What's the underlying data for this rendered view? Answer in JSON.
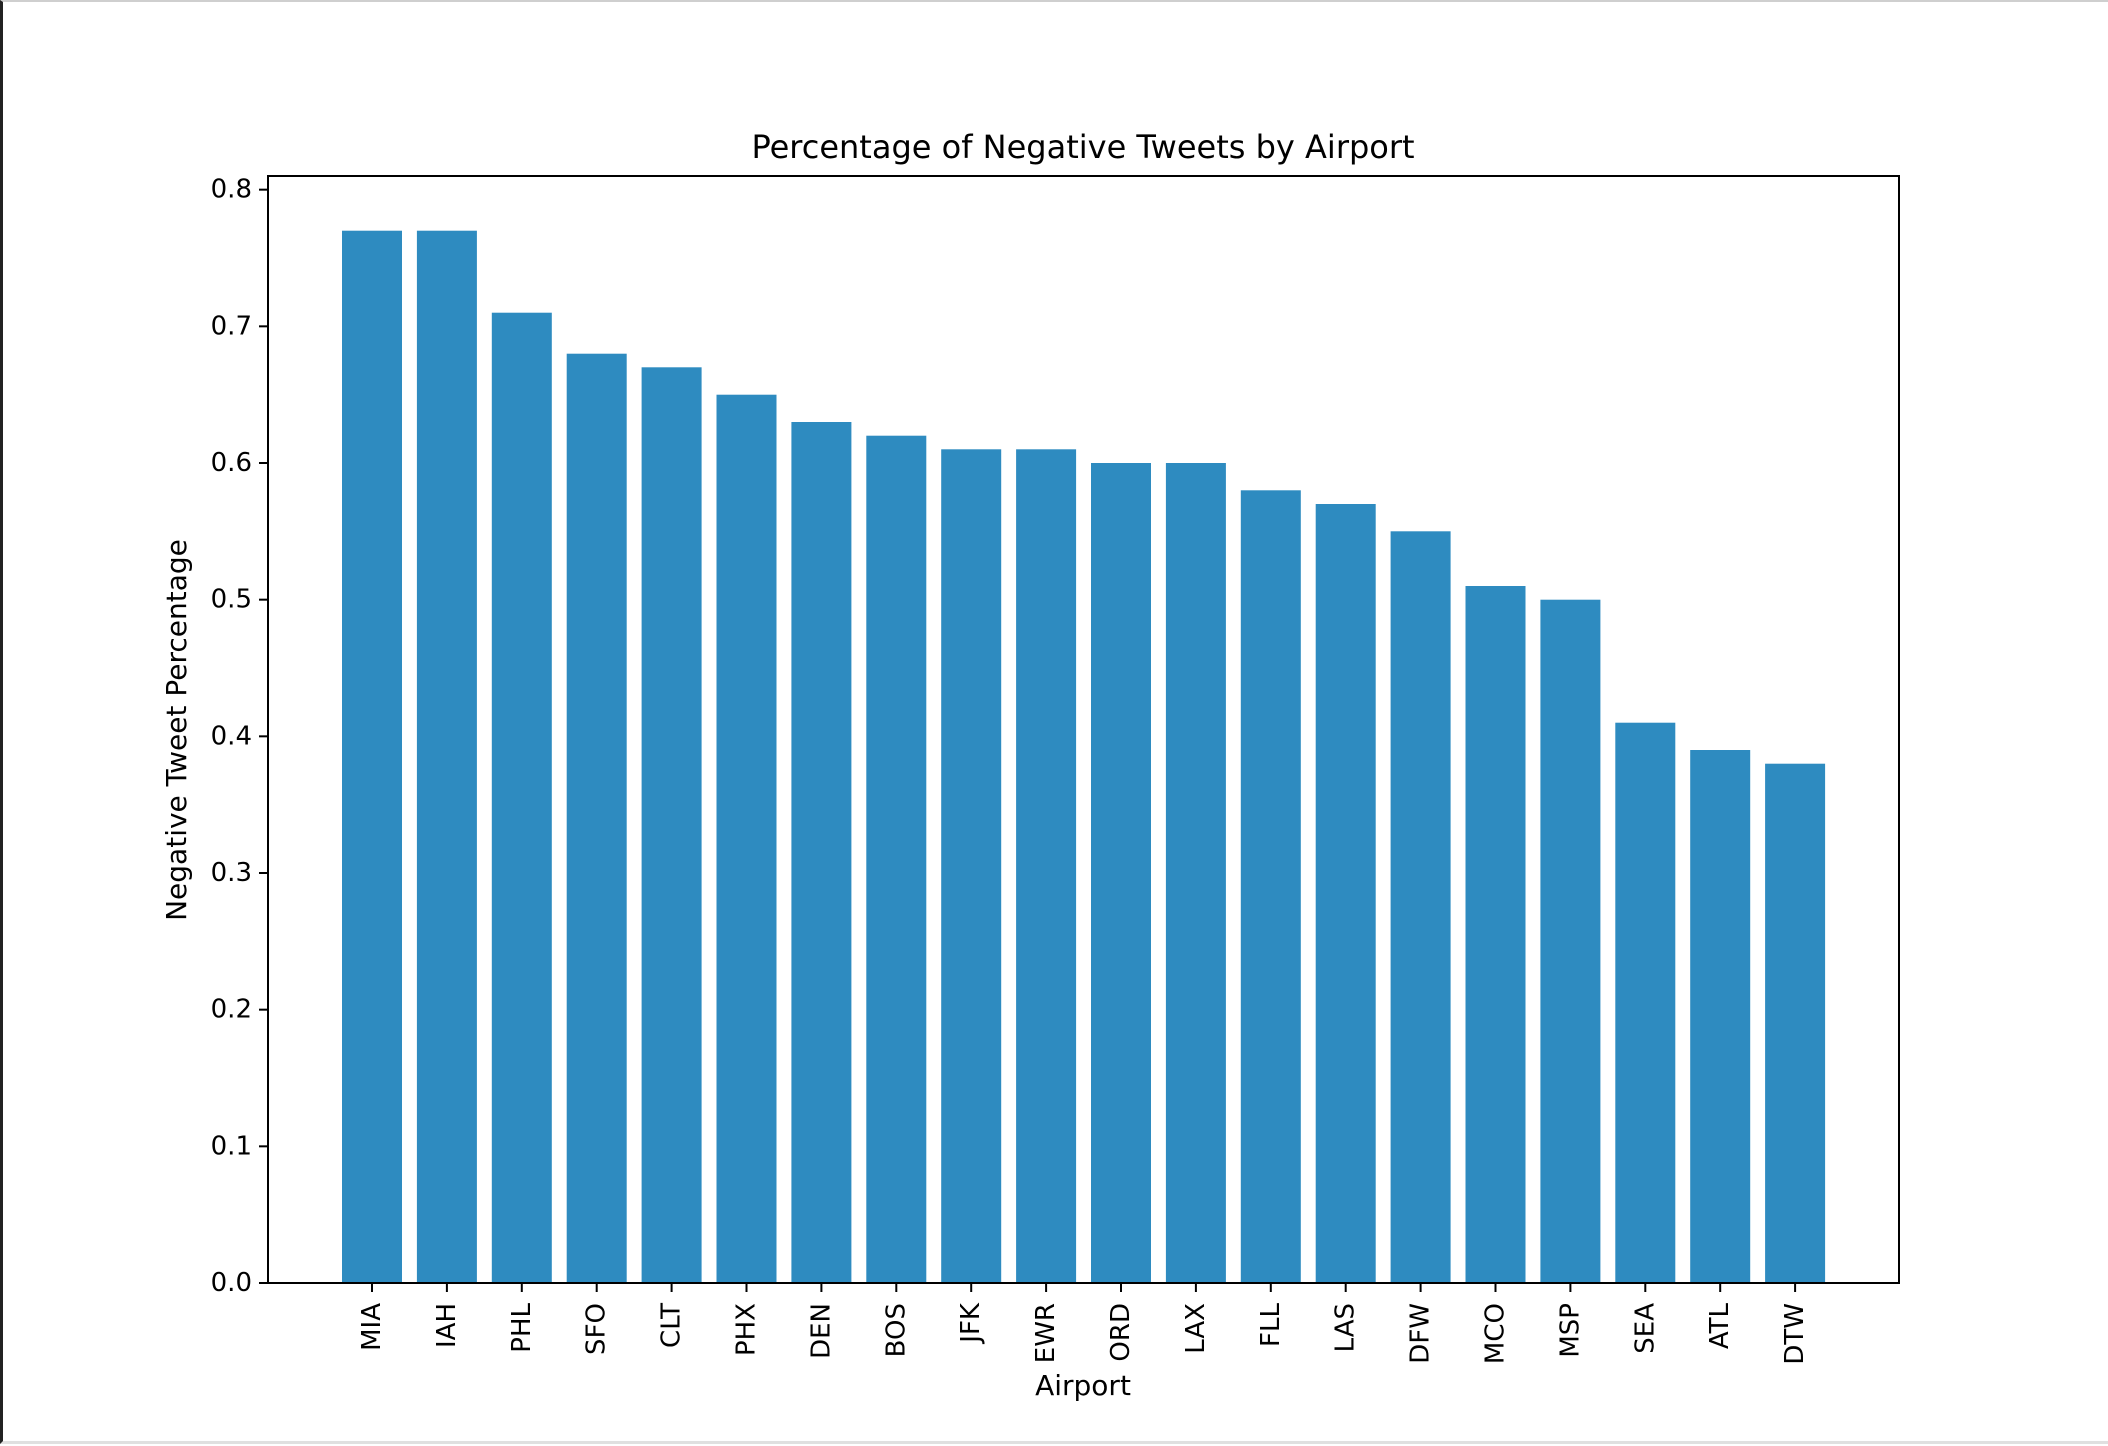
{
  "colors": {
    "bar": "#2e8bc0",
    "axis": "#000000",
    "background": "#ffffff"
  },
  "chart_data": {
    "type": "bar",
    "title": "Percentage of Negative Tweets by Airport",
    "xlabel": "Airport",
    "ylabel": "Negative Tweet Percentage",
    "categories": [
      "MIA",
      "IAH",
      "PHL",
      "SFO",
      "CLT",
      "PHX",
      "DEN",
      "BOS",
      "JFK",
      "EWR",
      "ORD",
      "LAX",
      "FLL",
      "LAS",
      "DFW",
      "MCO",
      "MSP",
      "SEA",
      "ATL",
      "DTW"
    ],
    "values": [
      0.77,
      0.77,
      0.71,
      0.68,
      0.67,
      0.65,
      0.63,
      0.62,
      0.61,
      0.61,
      0.6,
      0.6,
      0.58,
      0.57,
      0.55,
      0.51,
      0.5,
      0.41,
      0.39,
      0.38
    ],
    "ylim": [
      0.0,
      0.81
    ],
    "yticks": [
      "0.0",
      "0.1",
      "0.2",
      "0.3",
      "0.4",
      "0.5",
      "0.6",
      "0.7",
      "0.8"
    ],
    "grid": false,
    "legend": "none"
  }
}
